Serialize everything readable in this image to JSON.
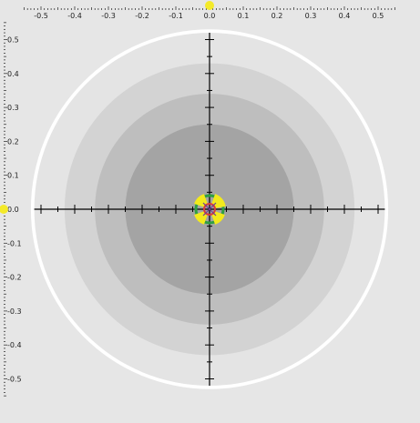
{
  "target_view": {
    "axis_range": [
      -0.5,
      0.5
    ],
    "rings": [
      {
        "radius": 0.53,
        "color": "#ffffff",
        "role": "outer-border"
      },
      {
        "radius": 0.52,
        "color": "#e4e4e4",
        "role": "outer-zone"
      },
      {
        "radius": 0.43,
        "color": "#d3d3d3",
        "role": "zone-2"
      },
      {
        "radius": 0.34,
        "color": "#bebebe",
        "role": "zone-3"
      },
      {
        "radius": 0.25,
        "color": "#a4a4a4",
        "role": "inner-zone"
      }
    ],
    "top_axis_ticks": [
      "-0.5",
      "-0.4",
      "-0.3",
      "-0.2",
      "-0.1",
      "0.0",
      "0.1",
      "0.2",
      "0.3",
      "0.4",
      "0.5"
    ],
    "left_axis_ticks": [
      "0.5",
      "0.4",
      "0.3",
      "0.2",
      "0.1",
      "0.0",
      "-0.1",
      "-0.2",
      "-0.3",
      "-0.4",
      "-0.5"
    ],
    "colors": {
      "background": "#e6e6e6",
      "axis": "#000000",
      "marker": "#f4ea2a",
      "center_yellow": "#f2ea1c",
      "center_green": "#2f9e44",
      "center_red": "#d63b3b",
      "center_purple": "#6a3d9a"
    },
    "icons": {
      "x_marker": "yellow-circle",
      "y_marker": "yellow-circle",
      "center": "target-center-glyph"
    }
  }
}
